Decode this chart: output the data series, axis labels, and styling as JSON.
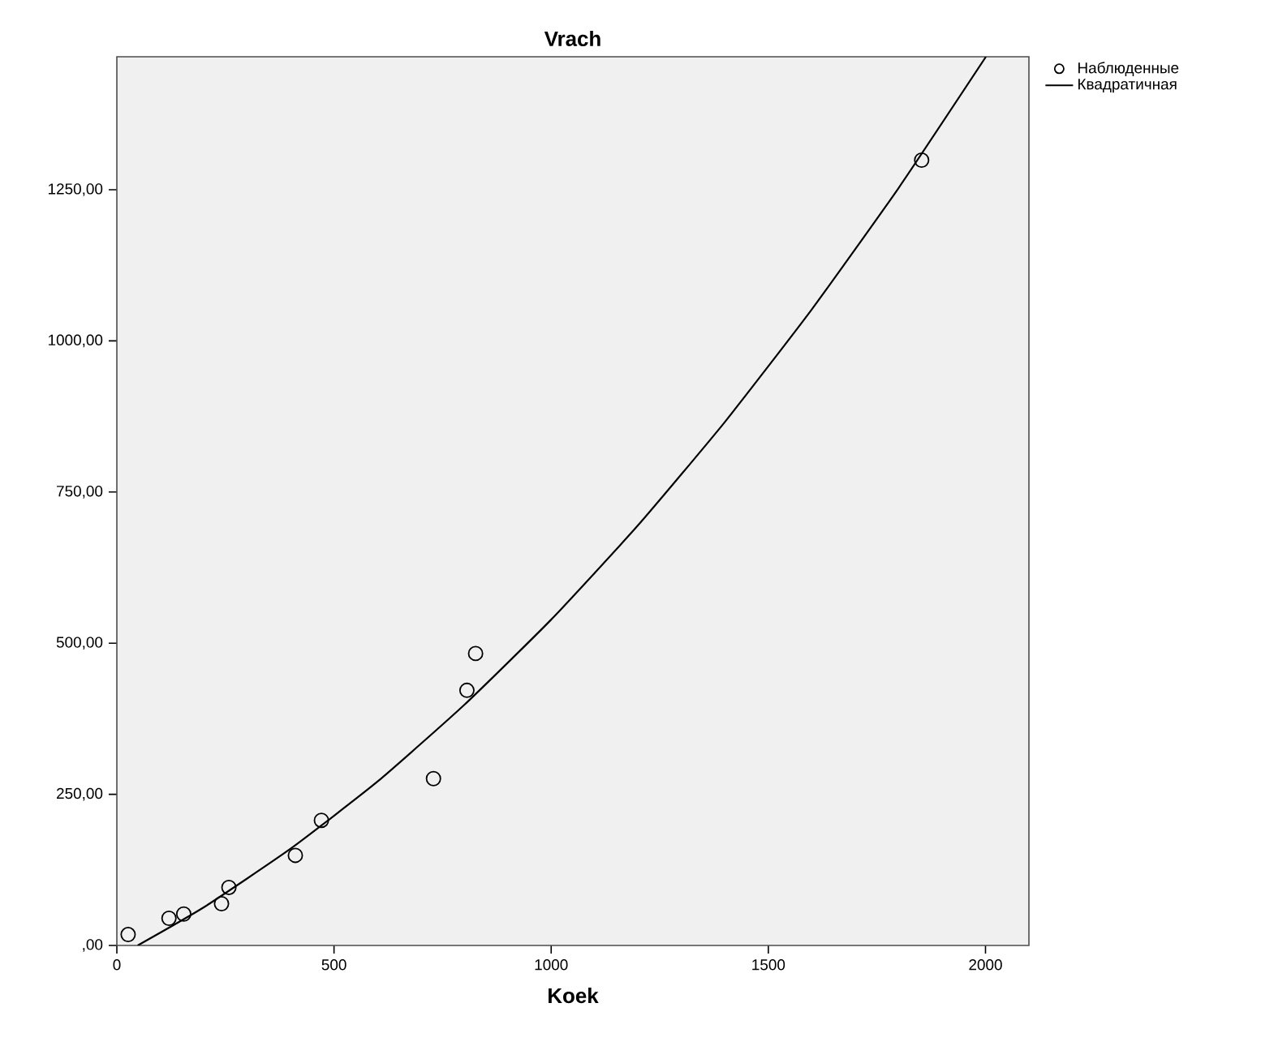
{
  "chart_data": {
    "type": "scatter",
    "title": "Vrach",
    "xlabel": "Koek",
    "xlim": [
      0,
      2100
    ],
    "ylim": [
      0,
      1470
    ],
    "xticks": [
      0,
      500,
      1000,
      1500,
      2000
    ],
    "yticks": [
      {
        "value": 0,
        "label": ",00"
      },
      {
        "value": 250,
        "label": "250,00"
      },
      {
        "value": 500,
        "label": "500,00"
      },
      {
        "value": 750,
        "label": "750,00"
      },
      {
        "value": 1000,
        "label": "1000,00"
      },
      {
        "value": 1250,
        "label": "1250,00"
      }
    ],
    "grid": false,
    "legend": "right",
    "series": [
      {
        "name": "Наблюденные",
        "marker": "circle",
        "color": "#000000",
        "x": [
          26,
          120,
          154,
          241,
          258,
          411,
          471,
          729,
          806,
          826,
          1853
        ],
        "values": [
          18,
          45,
          52,
          69,
          96,
          149,
          207,
          276,
          422,
          483,
          1299
        ]
      },
      {
        "name": "Квадратичная",
        "type": "line",
        "marker": "none",
        "line_style": "solid",
        "color": "#000000",
        "x": [
          48,
          200,
          400,
          600,
          800,
          1000,
          1200,
          1400,
          1600,
          1800,
          2001
        ],
        "values": [
          0,
          63,
          160,
          271,
          398,
          539,
          695,
          866,
          1052,
          1253,
          1470
        ]
      }
    ]
  }
}
